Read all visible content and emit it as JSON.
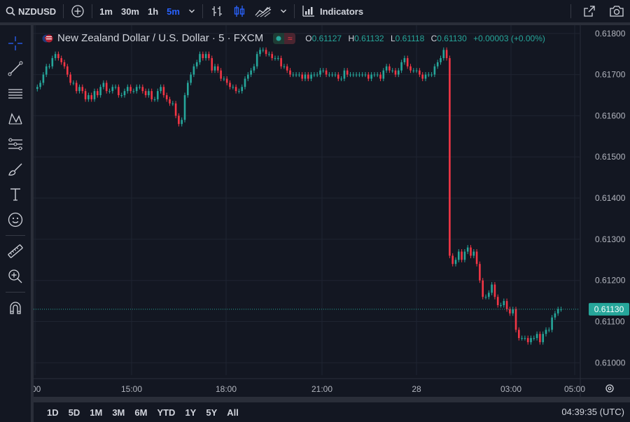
{
  "toolbar": {
    "symbol": "NZDUSD",
    "timeframes": [
      "1m",
      "30m",
      "1h",
      "5m"
    ],
    "active_timeframe": "5m",
    "indicators_label": "Indicators"
  },
  "legend": {
    "title": "New Zealand Dollar / U.S. Dollar · 5 · FXCM",
    "ohlc": [
      {
        "key": "O",
        "value": "0.61127"
      },
      {
        "key": "H",
        "value": "0.61132"
      },
      {
        "key": "L",
        "value": "0.61118"
      },
      {
        "key": "C",
        "value": "0.61130"
      }
    ],
    "change": "+0.00003 (+0.00%)"
  },
  "price_axis": {
    "labels": [
      "0.61800",
      "0.61700",
      "0.61600",
      "0.61500",
      "0.61400",
      "0.61300",
      "0.61200",
      "0.61100",
      "0.61000"
    ],
    "current_price": "0.61130"
  },
  "time_axis": {
    "labels": [
      ":00",
      "15:00",
      "18:00",
      "21:00",
      "28",
      "03:00",
      "05:00"
    ]
  },
  "bottom": {
    "ranges": [
      "1D",
      "5D",
      "1M",
      "3M",
      "6M",
      "YTD",
      "1Y",
      "5Y",
      "All"
    ],
    "clock": "04:39:35 (UTC)"
  },
  "colors": {
    "up": "#26a69a",
    "down": "#f23645",
    "accent": "#2962ff",
    "background": "#131722"
  },
  "chart_data": {
    "type": "candlestick",
    "title": "New Zealand Dollar / U.S. Dollar · 5 · FXCM",
    "ylim": [
      0.6097,
      0.6182
    ],
    "closes": [
      0.6167,
      0.6168,
      0.617,
      0.6172,
      0.6172,
      0.6174,
      0.6175,
      0.6174,
      0.6173,
      0.6172,
      0.617,
      0.6168,
      0.6168,
      0.6166,
      0.6167,
      0.6166,
      0.6164,
      0.6165,
      0.6164,
      0.6166,
      0.6165,
      0.6167,
      0.6168,
      0.6166,
      0.6166,
      0.6167,
      0.6167,
      0.6165,
      0.6165,
      0.6166,
      0.6167,
      0.6166,
      0.6166,
      0.6167,
      0.6167,
      0.6166,
      0.6165,
      0.6166,
      0.6164,
      0.6164,
      0.6166,
      0.6167,
      0.6165,
      0.6164,
      0.6163,
      0.6163,
      0.616,
      0.6158,
      0.6159,
      0.6165,
      0.6168,
      0.617,
      0.6172,
      0.6173,
      0.6175,
      0.6174,
      0.6175,
      0.6174,
      0.6171,
      0.6172,
      0.6171,
      0.6169,
      0.6169,
      0.6168,
      0.6167,
      0.6167,
      0.6166,
      0.6166,
      0.6167,
      0.6169,
      0.617,
      0.6171,
      0.6172,
      0.6175,
      0.6176,
      0.6176,
      0.6175,
      0.6175,
      0.6174,
      0.6174,
      0.6174,
      0.6172,
      0.6172,
      0.6171,
      0.617,
      0.617,
      0.617,
      0.617,
      0.6169,
      0.617,
      0.6169,
      0.617,
      0.617,
      0.617,
      0.6171,
      0.6171,
      0.617,
      0.617,
      0.617,
      0.617,
      0.6169,
      0.6169,
      0.6171,
      0.617,
      0.617,
      0.617,
      0.617,
      0.617,
      0.617,
      0.617,
      0.6169,
      0.617,
      0.617,
      0.617,
      0.6169,
      0.6171,
      0.6172,
      0.6171,
      0.6171,
      0.617,
      0.6171,
      0.6173,
      0.6174,
      0.6172,
      0.6171,
      0.6171,
      0.6171,
      0.617,
      0.6169,
      0.617,
      0.617,
      0.617,
      0.6172,
      0.6173,
      0.6174,
      0.6176,
      0.6174,
      0.6126,
      0.6124,
      0.6125,
      0.6127,
      0.6125,
      0.6127,
      0.6128,
      0.6126,
      0.6127,
      0.6124,
      0.612,
      0.6116,
      0.6116,
      0.6117,
      0.6119,
      0.6116,
      0.6114,
      0.6114,
      0.6115,
      0.6113,
      0.6112,
      0.6113,
      0.6108,
      0.6106,
      0.6106,
      0.6106,
      0.6105,
      0.6106,
      0.6106,
      0.6107,
      0.6105,
      0.6107,
      0.6108,
      0.6108,
      0.6111,
      0.6112,
      0.6113,
      0.6113
    ]
  }
}
